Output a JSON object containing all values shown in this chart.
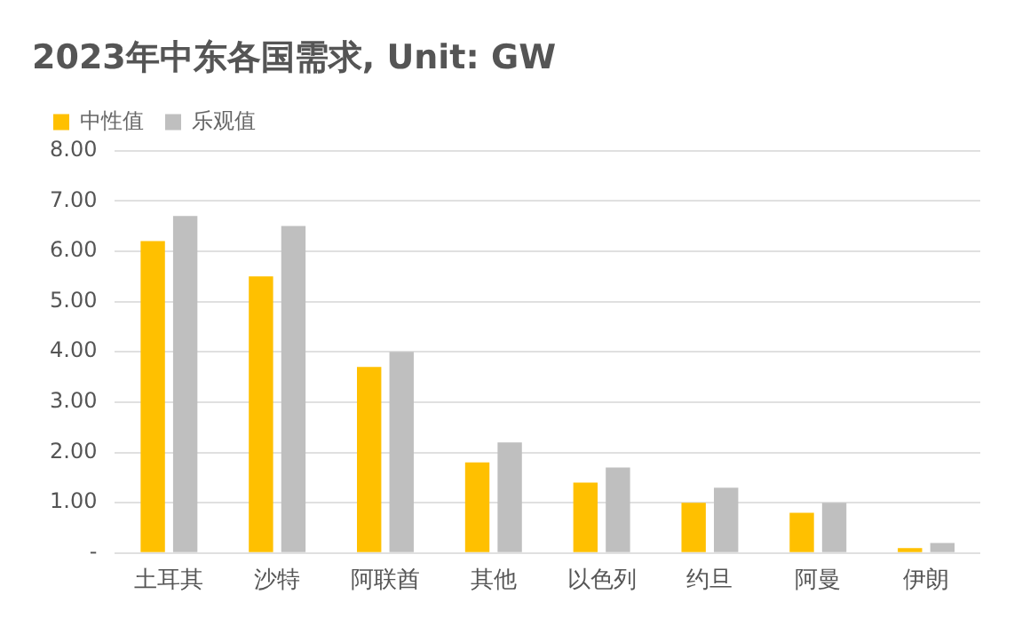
{
  "chart_data": {
    "type": "bar",
    "title": "2023年中东各国需求, Unit: GW",
    "categories": [
      "土耳其",
      "沙特",
      "阿联酋",
      "其他",
      "以色列",
      "约旦",
      "阿曼",
      "伊朗"
    ],
    "series": [
      {
        "name": "中性值",
        "color": "#ffc000",
        "values": [
          6.2,
          5.5,
          3.7,
          1.8,
          1.4,
          1.0,
          0.8,
          0.1
        ]
      },
      {
        "name": "乐观值",
        "color": "#bfbfbf",
        "values": [
          6.7,
          6.5,
          4.0,
          2.2,
          1.7,
          1.3,
          1.0,
          0.2
        ]
      }
    ],
    "ylim": [
      0,
      8
    ],
    "yticks": [
      {
        "value": 0,
        "label": "-"
      },
      {
        "value": 1,
        "label": "1.00"
      },
      {
        "value": 2,
        "label": "2.00"
      },
      {
        "value": 3,
        "label": "3.00"
      },
      {
        "value": 4,
        "label": "4.00"
      },
      {
        "value": 5,
        "label": "5.00"
      },
      {
        "value": 6,
        "label": "6.00"
      },
      {
        "value": 7,
        "label": "7.00"
      },
      {
        "value": 8,
        "label": "8.00"
      }
    ],
    "grid": "y",
    "legend": "top left"
  }
}
